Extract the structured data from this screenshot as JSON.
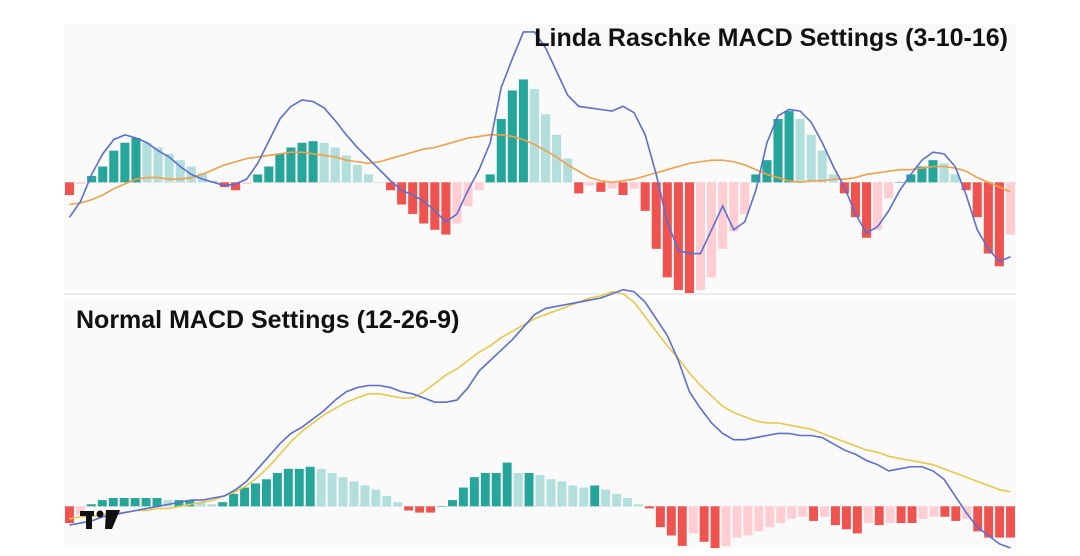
{
  "logo": {
    "name": "tradingview-logo-icon",
    "text": "TV"
  },
  "colors": {
    "bull_strong": "#26a69a",
    "bull_weak": "#b2dfdb",
    "bear_strong": "#ef5350",
    "bear_weak": "#ffcdd2",
    "macd_line": "#5b6fd0",
    "signal_line_top": "#f0a04b",
    "signal_line_bottom": "#e8c84a"
  },
  "chart_data": [
    {
      "type": "bar",
      "title": "Linda Raschke MACD Settings (3-10-16)",
      "xlabel": "",
      "ylabel": "",
      "ylim": [
        -0.68,
        1.0
      ],
      "grid": false,
      "histogram": [
        -0.08,
        -0.01,
        0.04,
        0.1,
        0.2,
        0.25,
        0.28,
        0.25,
        0.22,
        0.18,
        0.14,
        0.1,
        0.06,
        0.01,
        -0.03,
        -0.05,
        -0.01,
        0.05,
        0.1,
        0.18,
        0.22,
        0.25,
        0.26,
        0.25,
        0.22,
        0.17,
        0.11,
        0.05,
        0.0,
        -0.05,
        -0.14,
        -0.2,
        -0.26,
        -0.3,
        -0.33,
        -0.26,
        -0.15,
        -0.05,
        0.05,
        0.4,
        0.58,
        0.65,
        0.59,
        0.43,
        0.3,
        0.15,
        -0.07,
        -0.02,
        -0.06,
        -0.04,
        -0.08,
        -0.04,
        -0.18,
        -0.42,
        -0.6,
        -0.68,
        -0.7,
        -0.68,
        -0.6,
        -0.42,
        -0.31,
        -0.2,
        0.05,
        0.14,
        0.4,
        0.45,
        0.4,
        0.3,
        0.2,
        0.05,
        -0.07,
        -0.22,
        -0.35,
        -0.3,
        -0.1,
        0.0,
        0.05,
        0.1,
        0.14,
        0.12,
        0.05,
        -0.05,
        -0.22,
        -0.45,
        -0.53,
        -0.33
      ],
      "macd": [
        -0.22,
        -0.12,
        0.05,
        0.18,
        0.27,
        0.3,
        0.28,
        0.25,
        0.2,
        0.16,
        0.1,
        0.05,
        0.02,
        0.0,
        -0.02,
        -0.01,
        0.02,
        0.12,
        0.26,
        0.4,
        0.48,
        0.52,
        0.51,
        0.47,
        0.39,
        0.3,
        0.22,
        0.15,
        0.08,
        0.01,
        -0.05,
        -0.08,
        -0.12,
        -0.18,
        -0.25,
        -0.2,
        -0.05,
        0.08,
        0.25,
        0.6,
        0.78,
        0.95,
        0.95,
        0.85,
        0.7,
        0.55,
        0.48,
        0.47,
        0.46,
        0.45,
        0.48,
        0.44,
        0.3,
        0.05,
        -0.25,
        -0.43,
        -0.45,
        -0.45,
        -0.3,
        -0.15,
        -0.3,
        -0.25,
        -0.05,
        0.25,
        0.42,
        0.46,
        0.45,
        0.38,
        0.25,
        0.1,
        -0.03,
        -0.2,
        -0.32,
        -0.28,
        -0.18,
        -0.05,
        0.05,
        0.14,
        0.19,
        0.18,
        0.1,
        -0.08,
        -0.3,
        -0.42,
        -0.5,
        -0.47
      ],
      "signal": [
        -0.14,
        -0.13,
        -0.11,
        -0.08,
        -0.04,
        -0.01,
        0.02,
        0.03,
        0.03,
        0.02,
        0.02,
        0.03,
        0.05,
        0.08,
        0.11,
        0.13,
        0.15,
        0.16,
        0.17,
        0.18,
        0.19,
        0.19,
        0.18,
        0.17,
        0.16,
        0.14,
        0.13,
        0.12,
        0.13,
        0.15,
        0.17,
        0.19,
        0.21,
        0.22,
        0.24,
        0.26,
        0.28,
        0.29,
        0.3,
        0.3,
        0.29,
        0.27,
        0.24,
        0.2,
        0.16,
        0.11,
        0.07,
        0.03,
        0.01,
        0.0,
        0.01,
        0.02,
        0.04,
        0.06,
        0.08,
        0.1,
        0.12,
        0.13,
        0.14,
        0.14,
        0.13,
        0.11,
        0.08,
        0.05,
        0.03,
        0.01,
        0.0,
        0.01,
        0.01,
        0.02,
        0.02,
        0.03,
        0.05,
        0.06,
        0.07,
        0.08,
        0.08,
        0.09,
        0.1,
        0.1,
        0.09,
        0.07,
        0.03,
        0.0,
        -0.03,
        -0.06
      ]
    },
    {
      "type": "bar",
      "title": "Normal MACD Settings (12-26-9)",
      "xlabel": "",
      "ylabel": "",
      "ylim": [
        -0.2,
        1.0
      ],
      "grid": false,
      "histogram": [
        -0.08,
        -0.04,
        0.01,
        0.03,
        0.04,
        0.04,
        0.04,
        0.04,
        0.04,
        0.03,
        0.03,
        0.03,
        0.02,
        0.01,
        0.02,
        0.06,
        0.09,
        0.11,
        0.13,
        0.16,
        0.18,
        0.18,
        0.19,
        0.18,
        0.16,
        0.14,
        0.12,
        0.1,
        0.08,
        0.05,
        0.02,
        -0.02,
        -0.03,
        -0.03,
        0.0,
        0.03,
        0.09,
        0.14,
        0.16,
        0.16,
        0.21,
        0.16,
        0.16,
        0.15,
        0.13,
        0.12,
        0.1,
        0.09,
        0.1,
        0.08,
        0.06,
        0.04,
        0.01,
        -0.01,
        -0.1,
        -0.14,
        -0.19,
        -0.13,
        -0.17,
        -0.2,
        -0.19,
        -0.15,
        -0.14,
        -0.12,
        -0.1,
        -0.08,
        -0.06,
        -0.05,
        -0.07,
        -0.05,
        -0.09,
        -0.11,
        -0.13,
        -0.08,
        -0.09,
        -0.08,
        -0.08,
        -0.08,
        -0.06,
        -0.05,
        -0.05,
        -0.07,
        -0.06,
        -0.12,
        -0.15,
        -0.15,
        -0.15
      ],
      "macd": [
        -0.09,
        -0.08,
        -0.07,
        -0.05,
        -0.04,
        -0.03,
        -0.02,
        -0.01,
        0.0,
        0.01,
        0.02,
        0.03,
        0.03,
        0.04,
        0.05,
        0.08,
        0.12,
        0.18,
        0.24,
        0.3,
        0.35,
        0.38,
        0.42,
        0.46,
        0.51,
        0.55,
        0.57,
        0.58,
        0.58,
        0.57,
        0.55,
        0.54,
        0.52,
        0.5,
        0.5,
        0.51,
        0.57,
        0.65,
        0.7,
        0.75,
        0.8,
        0.86,
        0.92,
        0.95,
        0.96,
        0.97,
        0.98,
        0.99,
        1.0,
        1.02,
        1.04,
        1.03,
        0.98,
        0.9,
        0.82,
        0.7,
        0.55,
        0.47,
        0.4,
        0.35,
        0.32,
        0.32,
        0.33,
        0.34,
        0.35,
        0.35,
        0.34,
        0.34,
        0.33,
        0.3,
        0.27,
        0.25,
        0.22,
        0.2,
        0.17,
        0.18,
        0.19,
        0.19,
        0.17,
        0.13,
        0.05,
        -0.03,
        -0.1,
        -0.14,
        -0.18,
        -0.2
      ],
      "signal": [
        -0.06,
        -0.05,
        -0.05,
        -0.04,
        -0.03,
        -0.03,
        -0.02,
        -0.02,
        -0.01,
        -0.01,
        0.0,
        0.01,
        0.02,
        0.03,
        0.05,
        0.07,
        0.1,
        0.14,
        0.19,
        0.25,
        0.31,
        0.36,
        0.4,
        0.44,
        0.47,
        0.5,
        0.52,
        0.54,
        0.54,
        0.53,
        0.52,
        0.52,
        0.55,
        0.59,
        0.63,
        0.66,
        0.7,
        0.74,
        0.77,
        0.81,
        0.84,
        0.87,
        0.9,
        0.92,
        0.94,
        0.96,
        0.98,
        1.0,
        1.01,
        1.03,
        1.02,
        0.98,
        0.91,
        0.84,
        0.77,
        0.71,
        0.64,
        0.58,
        0.53,
        0.48,
        0.45,
        0.43,
        0.41,
        0.4,
        0.4,
        0.39,
        0.38,
        0.37,
        0.35,
        0.33,
        0.31,
        0.29,
        0.27,
        0.26,
        0.24,
        0.23,
        0.22,
        0.21,
        0.2,
        0.18,
        0.16,
        0.14,
        0.12,
        0.1,
        0.08,
        0.07
      ]
    }
  ]
}
